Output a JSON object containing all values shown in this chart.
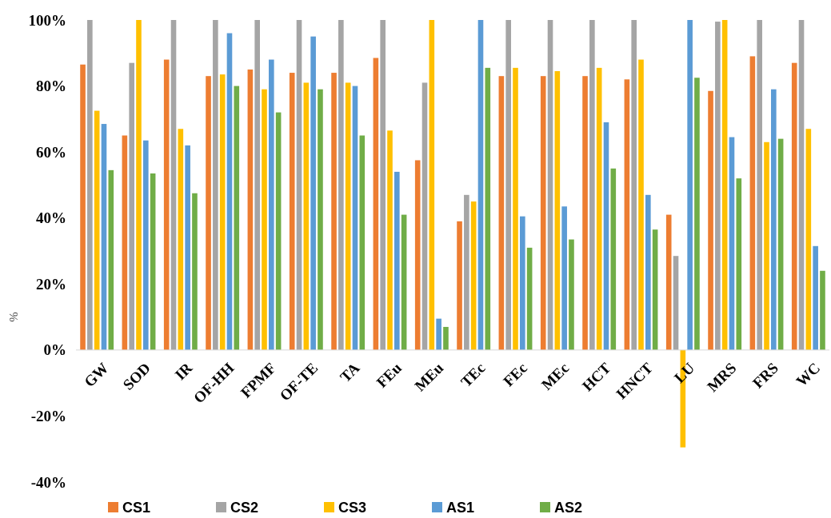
{
  "chart_data": {
    "type": "bar",
    "ylabel": "%",
    "categories": [
      "GW",
      "SOD",
      "IR",
      "OF-HH",
      "FPMF",
      "OF-TE",
      "TA",
      "FEu",
      "MEu",
      "TEc",
      "FEc",
      "MEc",
      "HCT",
      "HNCT",
      "LU",
      "MRS",
      "FRS",
      "WC"
    ],
    "series": [
      {
        "name": "CS1",
        "color": "#ed7d31",
        "values": [
          86.5,
          65,
          88,
          83,
          85,
          84,
          84,
          88.5,
          57.5,
          39,
          83,
          83,
          83,
          82,
          41,
          78.5,
          89,
          87
        ]
      },
      {
        "name": "CS2",
        "color": "#a5a5a5",
        "values": [
          100,
          87,
          100,
          100,
          100,
          100,
          100,
          100,
          81,
          47,
          100,
          100,
          100,
          100,
          28.5,
          99.5,
          100,
          100
        ]
      },
      {
        "name": "CS3",
        "color": "#ffc000",
        "values": [
          72.5,
          100,
          67,
          83.5,
          79,
          81,
          81,
          66.5,
          100,
          45,
          85.5,
          84.5,
          85.5,
          88,
          -29.5,
          100,
          63,
          67
        ]
      },
      {
        "name": "AS1",
        "color": "#5b9bd5",
        "values": [
          68.5,
          63.5,
          62,
          96,
          88,
          95,
          80,
          54,
          9.5,
          100,
          40.5,
          43.5,
          69,
          47,
          100,
          64.5,
          79,
          31.5
        ]
      },
      {
        "name": "AS2",
        "color": "#70ad47",
        "values": [
          54.5,
          53.5,
          47.5,
          80,
          72,
          79,
          65,
          41,
          7,
          85.5,
          31,
          33.5,
          55,
          36.5,
          82.5,
          52,
          64,
          24
        ]
      }
    ],
    "ylim": [
      -40,
      100
    ],
    "yticks": [
      {
        "value": -40,
        "label": "-40%"
      },
      {
        "value": -20,
        "label": "-20%"
      },
      {
        "value": 0,
        "label": "0%"
      },
      {
        "value": 20,
        "label": "20%"
      },
      {
        "value": 40,
        "label": "40%"
      },
      {
        "value": 60,
        "label": "60%"
      },
      {
        "value": 80,
        "label": "80%"
      },
      {
        "value": 100,
        "label": "100%"
      }
    ],
    "grid": false,
    "legend": "bottom"
  }
}
